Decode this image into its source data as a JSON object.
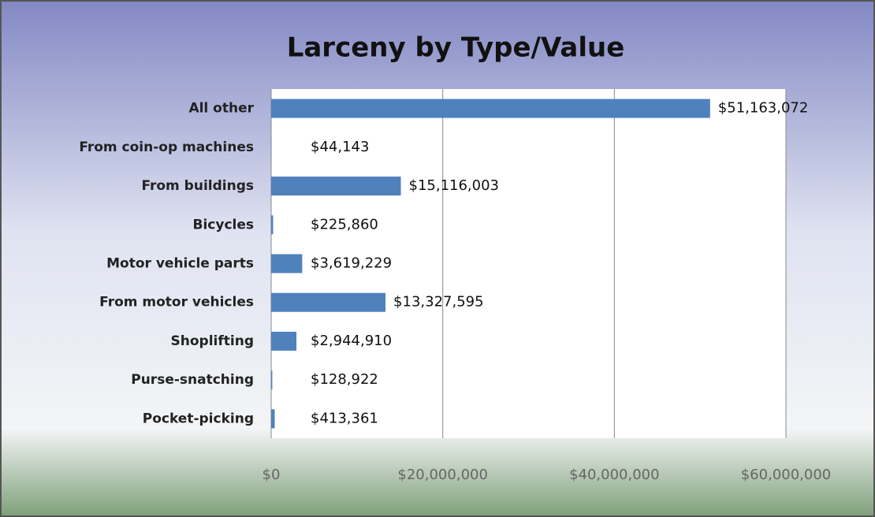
{
  "chart_data": {
    "type": "bar",
    "orientation": "horizontal",
    "title": "Larceny by Type/Value",
    "categories": [
      "All other",
      "From coin-op machines",
      "From buildings",
      "Bicycles",
      "Motor vehicle parts",
      "From motor vehicles",
      "Shoplifting",
      "Purse-snatching",
      "Pocket-picking"
    ],
    "values": [
      51163072,
      44143,
      15116003,
      225860,
      3619229,
      13327595,
      2944910,
      128922,
      413361
    ],
    "value_labels": [
      "$51,163,072",
      "$44,143",
      "$15,116,003",
      "$225,860",
      "$3,619,229",
      "$13,327,595",
      "$2,944,910",
      "$128,922",
      "$413,361"
    ],
    "color": "#4f81bd",
    "xlim": [
      0,
      60000000
    ],
    "xticks": [
      {
        "value": 0,
        "label": "$0"
      },
      {
        "value": 20000000,
        "label": "$20,000,000"
      },
      {
        "value": 40000000,
        "label": "$40,000,000"
      },
      {
        "value": 60000000,
        "label": "$60,000,000"
      }
    ],
    "grid": true
  }
}
